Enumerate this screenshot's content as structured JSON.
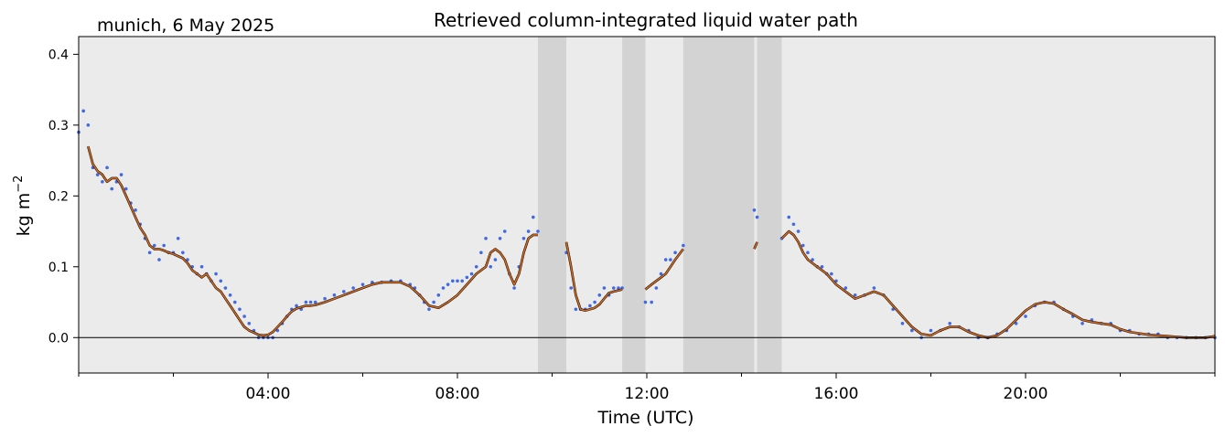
{
  "chart_data": {
    "type": "scatter",
    "location_date": "munich, 6 May 2025",
    "title": "Retrieved column-integrated liquid water path",
    "xlabel": "Time (UTC)",
    "ylabel": "kg m",
    "ylabel_exp": "−2",
    "xlim_hours": [
      0,
      24
    ],
    "ylim": [
      -0.05,
      0.425
    ],
    "x_ticks": [
      {
        "hour": 4,
        "label": "04:00"
      },
      {
        "hour": 8,
        "label": "08:00"
      },
      {
        "hour": 12,
        "label": "12:00"
      },
      {
        "hour": 16,
        "label": "16:00"
      },
      {
        "hour": 20,
        "label": "20:00"
      }
    ],
    "x_minor_ticks_hours": [
      0,
      2,
      6,
      10,
      14,
      18,
      22,
      24
    ],
    "y_ticks": [
      {
        "value": 0.0,
        "label": "0.0"
      },
      {
        "value": 0.1,
        "label": "0.1"
      },
      {
        "value": 0.2,
        "label": "0.2"
      },
      {
        "value": 0.3,
        "label": "0.3"
      },
      {
        "value": 0.4,
        "label": "0.4"
      }
    ],
    "zero_line": true,
    "colors": {
      "background": "#ebebeb",
      "flag_band": "#d3d3d3",
      "raw_points": "#4169e1",
      "smoothed_line": "#d2691e"
    },
    "flagged_intervals_hours": [
      [
        9.7,
        10.3
      ],
      [
        11.48,
        11.97
      ],
      [
        12.77,
        14.27
      ],
      [
        14.33,
        14.85
      ]
    ],
    "series": [
      {
        "kind": "raw",
        "segments": [
          {
            "x": [
              0.0,
              0.1,
              0.2,
              0.3,
              0.4,
              0.5,
              0.6,
              0.7,
              0.8,
              0.9,
              1.0,
              1.1,
              1.2,
              1.3,
              1.4,
              1.5,
              1.6,
              1.7,
              1.8,
              1.9,
              2.0,
              2.1,
              2.2,
              2.3,
              2.4,
              2.5,
              2.6,
              2.7,
              2.8,
              2.9,
              3.0,
              3.1,
              3.2,
              3.3,
              3.4,
              3.5,
              3.6,
              3.7,
              3.8,
              3.9,
              4.0,
              4.1,
              4.2,
              4.3,
              4.4,
              4.5,
              4.6,
              4.7,
              4.8,
              4.9,
              5.0,
              5.2,
              5.4,
              5.6,
              5.8,
              6.0,
              6.2,
              6.4,
              6.6,
              6.8,
              7.0,
              7.1,
              7.2,
              7.3,
              7.4,
              7.5,
              7.6,
              7.7,
              7.8,
              7.9,
              8.0,
              8.1,
              8.2,
              8.3,
              8.4,
              8.5,
              8.6,
              8.7,
              8.8,
              8.9,
              9.0,
              9.1,
              9.2,
              9.3,
              9.4,
              9.5,
              9.6,
              9.7
            ],
            "y": [
              0.29,
              0.32,
              0.3,
              0.24,
              0.23,
              0.22,
              0.24,
              0.21,
              0.22,
              0.23,
              0.21,
              0.19,
              0.18,
              0.16,
              0.14,
              0.12,
              0.13,
              0.11,
              0.13,
              0.12,
              0.12,
              0.14,
              0.12,
              0.11,
              0.1,
              0.09,
              0.1,
              0.09,
              0.08,
              0.09,
              0.08,
              0.07,
              0.06,
              0.05,
              0.04,
              0.03,
              0.02,
              0.01,
              0.0,
              0.0,
              0.0,
              0.0,
              0.01,
              0.02,
              0.03,
              0.04,
              0.045,
              0.04,
              0.05,
              0.05,
              0.05,
              0.055,
              0.06,
              0.065,
              0.07,
              0.075,
              0.078,
              0.078,
              0.08,
              0.08,
              0.075,
              0.07,
              0.06,
              0.05,
              0.04,
              0.05,
              0.06,
              0.07,
              0.075,
              0.08,
              0.08,
              0.08,
              0.085,
              0.09,
              0.1,
              0.12,
              0.14,
              0.1,
              0.11,
              0.14,
              0.15,
              0.09,
              0.07,
              0.1,
              0.14,
              0.15,
              0.17,
              0.15
            ]
          },
          {
            "x": [
              10.3,
              10.4,
              10.5,
              10.6,
              10.7,
              10.8,
              10.9,
              11.0,
              11.1,
              11.2,
              11.3,
              11.4,
              11.48
            ],
            "y": [
              0.12,
              0.07,
              0.04,
              0.04,
              0.04,
              0.045,
              0.05,
              0.06,
              0.07,
              0.06,
              0.07,
              0.07,
              0.07
            ]
          },
          {
            "x": [
              11.97,
              12.1,
              12.2,
              12.3,
              12.4,
              12.5,
              12.6,
              12.77
            ],
            "y": [
              0.05,
              0.05,
              0.07,
              0.09,
              0.11,
              0.11,
              0.12,
              0.13
            ]
          },
          {
            "x": [
              14.27,
              14.33
            ],
            "y": [
              0.18,
              0.17
            ]
          },
          {
            "x": [
              14.85,
              15.0,
              15.1,
              15.2,
              15.3,
              15.4,
              15.5,
              15.6,
              15.7,
              15.8,
              15.9,
              16.0,
              16.2,
              16.4,
              16.6,
              16.8,
              17.0,
              17.2,
              17.4,
              17.6,
              17.8,
              18.0,
              18.2,
              18.4,
              18.6,
              18.8,
              19.0,
              19.2,
              19.4,
              19.6,
              19.8,
              20.0,
              20.2,
              20.4,
              20.6,
              20.8,
              21.0,
              21.2,
              21.4,
              21.6,
              21.8,
              22.0,
              22.2,
              22.4,
              22.6,
              22.8,
              23.0,
              23.2,
              23.4,
              23.6,
              23.8,
              24.0
            ],
            "y": [
              0.14,
              0.17,
              0.16,
              0.15,
              0.13,
              0.12,
              0.11,
              0.1,
              0.1,
              0.09,
              0.09,
              0.08,
              0.07,
              0.06,
              0.06,
              0.07,
              0.06,
              0.04,
              0.02,
              0.01,
              0.0,
              0.01,
              0.01,
              0.02,
              0.015,
              0.01,
              0.0,
              0.0,
              0.005,
              0.01,
              0.02,
              0.03,
              0.045,
              0.05,
              0.05,
              0.04,
              0.03,
              0.02,
              0.025,
              0.02,
              0.02,
              0.01,
              0.01,
              0.005,
              0.005,
              0.005,
              0.0,
              0.0,
              0.0,
              0.0,
              0.0,
              0.0
            ]
          }
        ]
      },
      {
        "kind": "smoothed",
        "segments": [
          {
            "x": [
              0.2,
              0.3,
              0.4,
              0.5,
              0.6,
              0.7,
              0.8,
              0.9,
              1.0,
              1.1,
              1.2,
              1.3,
              1.4,
              1.5,
              1.6,
              1.7,
              1.8,
              1.9,
              2.0,
              2.1,
              2.2,
              2.3,
              2.4,
              2.5,
              2.6,
              2.7,
              2.8,
              2.9,
              3.0,
              3.1,
              3.2,
              3.3,
              3.4,
              3.5,
              3.6,
              3.7,
              3.8,
              3.9,
              4.0,
              4.1,
              4.2,
              4.3,
              4.4,
              4.5,
              4.6,
              4.7,
              4.8,
              4.9,
              5.0,
              5.2,
              5.4,
              5.6,
              5.8,
              6.0,
              6.2,
              6.4,
              6.6,
              6.8,
              7.0,
              7.2,
              7.4,
              7.6,
              7.8,
              8.0,
              8.2,
              8.4,
              8.6,
              8.7,
              8.8,
              8.9,
              9.0,
              9.1,
              9.2,
              9.3,
              9.4,
              9.5,
              9.6,
              9.7
            ],
            "y": [
              0.27,
              0.245,
              0.235,
              0.23,
              0.22,
              0.225,
              0.225,
              0.215,
              0.2,
              0.185,
              0.17,
              0.155,
              0.145,
              0.13,
              0.125,
              0.125,
              0.123,
              0.12,
              0.118,
              0.115,
              0.112,
              0.105,
              0.095,
              0.09,
              0.085,
              0.09,
              0.08,
              0.07,
              0.065,
              0.055,
              0.045,
              0.035,
              0.025,
              0.015,
              0.01,
              0.007,
              0.004,
              0.003,
              0.004,
              0.008,
              0.015,
              0.022,
              0.03,
              0.037,
              0.041,
              0.043,
              0.045,
              0.045,
              0.046,
              0.05,
              0.055,
              0.06,
              0.065,
              0.07,
              0.075,
              0.078,
              0.078,
              0.078,
              0.072,
              0.06,
              0.045,
              0.042,
              0.05,
              0.06,
              0.075,
              0.09,
              0.1,
              0.12,
              0.125,
              0.12,
              0.11,
              0.09,
              0.075,
              0.09,
              0.12,
              0.14,
              0.145,
              0.145
            ]
          },
          {
            "x": [
              10.3,
              10.4,
              10.5,
              10.6,
              10.7,
              10.8,
              10.9,
              11.0,
              11.1,
              11.2,
              11.3,
              11.48
            ],
            "y": [
              0.135,
              0.1,
              0.06,
              0.04,
              0.038,
              0.04,
              0.042,
              0.047,
              0.055,
              0.063,
              0.065,
              0.068
            ]
          },
          {
            "x": [
              11.97,
              12.1,
              12.2,
              12.3,
              12.4,
              12.5,
              12.6,
              12.77
            ],
            "y": [
              0.068,
              0.075,
              0.08,
              0.085,
              0.09,
              0.1,
              0.11,
              0.125
            ]
          },
          {
            "x": [
              14.27,
              14.33
            ],
            "y": [
              0.125,
              0.135
            ]
          },
          {
            "x": [
              14.85,
              15.0,
              15.1,
              15.2,
              15.3,
              15.4,
              15.5,
              15.6,
              15.7,
              15.8,
              16.0,
              16.2,
              16.4,
              16.6,
              16.8,
              17.0,
              17.2,
              17.4,
              17.6,
              17.8,
              18.0,
              18.2,
              18.4,
              18.6,
              18.8,
              19.0,
              19.2,
              19.4,
              19.6,
              19.8,
              20.0,
              20.2,
              20.4,
              20.6,
              20.8,
              21.0,
              21.2,
              21.4,
              21.6,
              21.8,
              22.0,
              22.2,
              22.4,
              22.6,
              22.8,
              23.0,
              23.2,
              23.4,
              23.6,
              23.8,
              24.0
            ],
            "y": [
              0.14,
              0.15,
              0.145,
              0.135,
              0.12,
              0.11,
              0.105,
              0.1,
              0.095,
              0.09,
              0.075,
              0.065,
              0.055,
              0.06,
              0.065,
              0.06,
              0.045,
              0.03,
              0.015,
              0.005,
              0.003,
              0.01,
              0.015,
              0.015,
              0.008,
              0.003,
              0.0,
              0.003,
              0.012,
              0.025,
              0.038,
              0.047,
              0.05,
              0.048,
              0.04,
              0.033,
              0.025,
              0.022,
              0.02,
              0.018,
              0.012,
              0.008,
              0.006,
              0.004,
              0.003,
              0.002,
              0.001,
              0.0,
              0.0,
              0.0,
              0.002
            ]
          }
        ]
      }
    ]
  }
}
